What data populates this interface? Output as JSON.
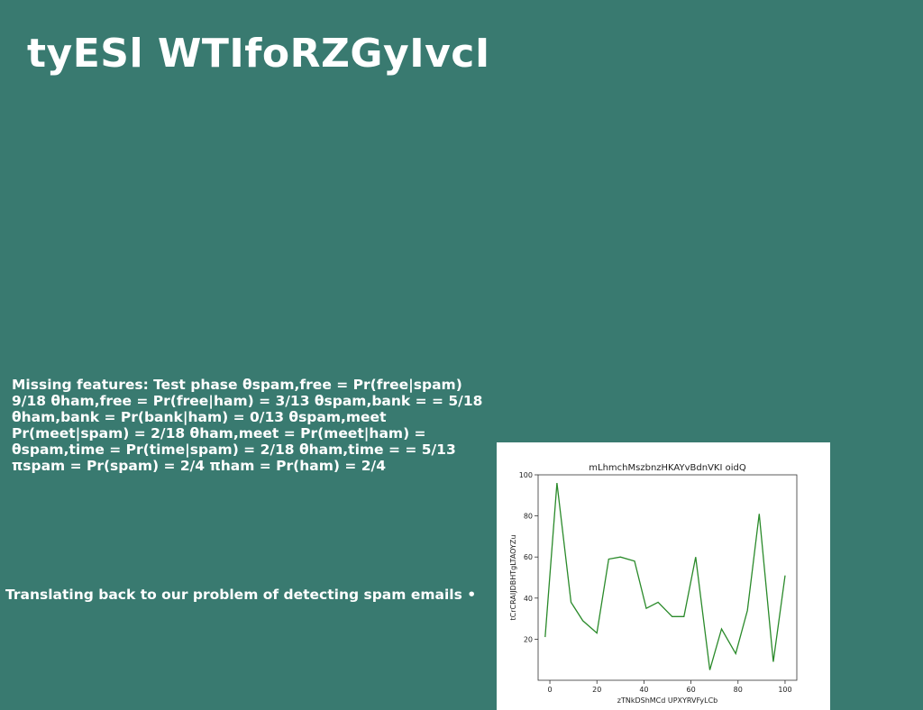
{
  "slide": {
    "title": "tyESl WTIfoRZGyIvcI",
    "body": "Missing features: Test phase θspam,free = Pr(free|spam) 9/18 θham,free = Pr(free|ham) = 3/13 θspam,bank = = 5/18 θham,bank = Pr(bank|ham) = 0/13 θspam,meet Pr(meet|spam) = 2/18 θham,meet = Pr(meet|ham) = θspam,time = Pr(time|spam) = 2/18 θham,time = = 5/13 πspam = Pr(spam) = 2/4 πham = Pr(ham) = 2/4",
    "caption": "Translating back to our problem of detecting spam emails •"
  },
  "colors": {
    "background": "#397a70",
    "text": "#ffffff",
    "line": "#2a8a2a"
  },
  "chart_data": {
    "type": "line",
    "title": "mLhmchMszbnzHKAYvBdnVKI oidQ",
    "xlabel": "zTNkDShMCd UPXYRVFyLCb",
    "ylabel": "tCrCRAIJDBHTgLTAOYZu",
    "x": [
      -2,
      3,
      9,
      14,
      20,
      25,
      30,
      36,
      41,
      46,
      52,
      57,
      62,
      68,
      73,
      79,
      84,
      89,
      95,
      100
    ],
    "y": [
      21,
      96,
      38,
      29,
      23,
      59,
      60,
      58,
      35,
      38,
      31,
      31,
      60,
      5,
      25,
      13,
      34,
      81,
      9,
      51
    ],
    "xlim": [
      -5,
      105
    ],
    "ylim": [
      0,
      100
    ],
    "xticks": [
      0,
      20,
      40,
      60,
      80,
      100
    ],
    "yticks": [
      20,
      40,
      60,
      80,
      100
    ],
    "grid": false,
    "line_color": "#2a8a2a"
  }
}
